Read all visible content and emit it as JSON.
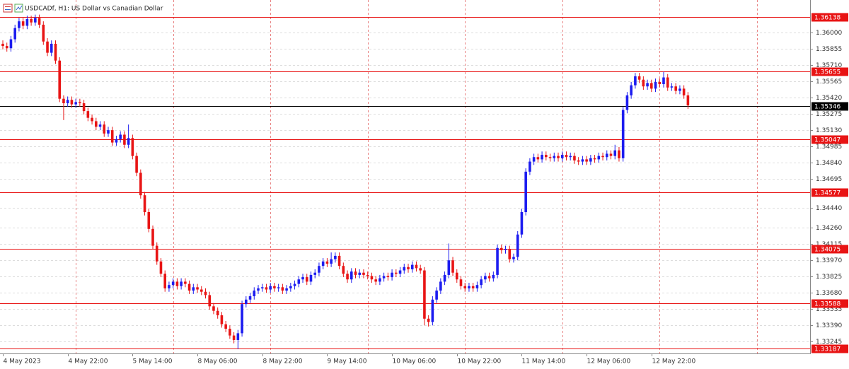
{
  "chart_data": {
    "type": "candlestick",
    "title": "USDCADf, H1:  US Dollar vs Canadian Dollar",
    "up_color": "#1c1cf0",
    "down_color": "#e81414",
    "level_color": "#e81414",
    "grid": true,
    "ylim": [
      1.3314,
      1.3629
    ],
    "yticks": [
      {
        "value": 1.36,
        "label": "1.36000"
      },
      1.35855,
      {
        "value": 1.3571,
        "label": "1.35710"
      },
      1.35565,
      {
        "value": 1.3542,
        "label": "1.35420"
      },
      1.35275,
      {
        "value": 1.3513,
        "label": "1.35130"
      },
      1.34985,
      {
        "value": 1.3484,
        "label": "1.34840"
      },
      1.34695,
      {
        "value": 1.3444,
        "label": "1.34440"
      },
      {
        "value": 1.3426,
        "label": "1.34260"
      },
      1.34115,
      {
        "value": 1.3397,
        "label": "1.33970"
      },
      1.33825,
      {
        "value": 1.3368,
        "label": "1.33680"
      },
      1.33535,
      {
        "value": 1.3339,
        "label": "1.33390"
      },
      1.33245
    ],
    "levels": [
      1.36138,
      1.35655,
      1.35047,
      1.34577,
      1.34075,
      1.33588,
      1.33187
    ],
    "current_price": 1.35346,
    "xticks": [
      {
        "value": 0,
        "label": "4 May 2023"
      },
      {
        "value": 16,
        "label": "4 May 22:00"
      },
      {
        "value": 32,
        "label": "5 May 14:00"
      },
      {
        "value": 48,
        "label": "8 May 06:00"
      },
      {
        "value": 64,
        "label": "8 May 22:00"
      },
      {
        "value": 80,
        "label": "9 May 14:00"
      },
      {
        "value": 96,
        "label": "10 May 06:00"
      },
      {
        "value": 112,
        "label": "10 May 22:00"
      },
      {
        "value": 128,
        "label": "11 May 14:00"
      },
      {
        "value": 144,
        "label": "12 May 06:00"
      },
      {
        "value": 160,
        "label": "12 May 22:00"
      }
    ],
    "open": [
      1.359,
      1.3588,
      1.3586,
      1.3594,
      1.3604,
      1.361,
      1.3606,
      1.3612,
      1.3609,
      1.3613,
      1.3607,
      1.3592,
      1.3582,
      1.359,
      1.3575,
      1.3541,
      1.3537,
      1.354,
      1.3536,
      1.3538,
      1.3537,
      1.353,
      1.3524,
      1.3521,
      1.3516,
      1.3518,
      1.351,
      1.3513,
      1.3502,
      1.3505,
      1.3509,
      1.35,
      1.3506,
      1.349,
      1.3475,
      1.3455,
      1.344,
      1.3425,
      1.341,
      1.3396,
      1.3385,
      1.3372,
      1.3375,
      1.3378,
      1.3374,
      1.3378,
      1.3376,
      1.337,
      1.3373,
      1.3371,
      1.3369,
      1.3366,
      1.3356,
      1.3352,
      1.3348,
      1.334,
      1.3336,
      1.333,
      1.3326,
      1.3332,
      1.3358,
      1.3362,
      1.3365,
      1.337,
      1.3372,
      1.3373,
      1.3371,
      1.3374,
      1.3372,
      1.3373,
      1.337,
      1.3372,
      1.3374,
      1.3376,
      1.338,
      1.3382,
      1.3378,
      1.3384,
      1.3386,
      1.3392,
      1.3396,
      1.3394,
      1.3398,
      1.3401,
      1.3392,
      1.3385,
      1.338,
      1.3387,
      1.3384,
      1.3386,
      1.3384,
      1.3383,
      1.338,
      1.3378,
      1.3381,
      1.3383,
      1.3382,
      1.3386,
      1.3385,
      1.3388,
      1.3391,
      1.3389,
      1.3393,
      1.339,
      1.3388,
      1.3345,
      1.3342,
      1.3362,
      1.337,
      1.3378,
      1.3384,
      1.3397,
      1.3386,
      1.338,
      1.3374,
      1.3372,
      1.3374,
      1.3372,
      1.3375,
      1.338,
      1.3383,
      1.3381,
      1.3384,
      1.3408,
      1.3406,
      1.3407,
      1.3398,
      1.34,
      1.342,
      1.344,
      1.3476,
      1.3485,
      1.3489,
      1.3487,
      1.3491,
      1.3489,
      1.3488,
      1.349,
      1.3488,
      1.3491,
      1.3489,
      1.349,
      1.3486,
      1.3485,
      1.3487,
      1.3485,
      1.3488,
      1.3487,
      1.349,
      1.3489,
      1.3492,
      1.349,
      1.3495,
      1.3488,
      1.3531,
      1.3544,
      1.3553,
      1.3561,
      1.3558,
      1.3552,
      1.3555,
      1.355,
      1.3556,
      1.3554,
      1.356,
      1.3551,
      1.3552,
      1.3548,
      1.355,
      1.3544
    ],
    "high": [
      1.3593,
      1.3591,
      1.3597,
      1.3607,
      1.3613,
      1.3613,
      1.3615,
      1.3615,
      1.3616,
      1.3616,
      1.361,
      1.3595,
      1.3593,
      1.3593,
      1.3578,
      1.3544,
      1.3543,
      1.3543,
      1.3541,
      1.3541,
      1.354,
      1.3533,
      1.3527,
      1.3524,
      1.3521,
      1.3521,
      1.3516,
      1.3516,
      1.3508,
      1.3512,
      1.3512,
      1.3518,
      1.3509,
      1.3493,
      1.3478,
      1.3458,
      1.3443,
      1.3428,
      1.3413,
      1.3399,
      1.3388,
      1.3378,
      1.3381,
      1.3381,
      1.3381,
      1.3381,
      1.3379,
      1.3376,
      1.3376,
      1.3374,
      1.3372,
      1.3369,
      1.3359,
      1.3355,
      1.3351,
      1.3343,
      1.3339,
      1.3333,
      1.3335,
      1.3361,
      1.3365,
      1.3368,
      1.3373,
      1.3375,
      1.3376,
      1.3376,
      1.3377,
      1.3377,
      1.3376,
      1.3376,
      1.3375,
      1.3377,
      1.3379,
      1.3383,
      1.3385,
      1.3385,
      1.3387,
      1.3389,
      1.3395,
      1.3399,
      1.3399,
      1.3404,
      1.3404,
      1.3404,
      1.3395,
      1.3388,
      1.339,
      1.339,
      1.3389,
      1.3389,
      1.3387,
      1.3386,
      1.3383,
      1.3384,
      1.3386,
      1.3386,
      1.3389,
      1.3389,
      1.3391,
      1.3394,
      1.3394,
      1.3396,
      1.3396,
      1.3393,
      1.3391,
      1.3348,
      1.3365,
      1.3373,
      1.3381,
      1.3387,
      1.3412,
      1.34,
      1.3389,
      1.3383,
      1.3377,
      1.3377,
      1.3377,
      1.3378,
      1.3383,
      1.3386,
      1.3386,
      1.3387,
      1.3411,
      1.3411,
      1.341,
      1.341,
      1.3403,
      1.3423,
      1.3443,
      1.3479,
      1.3488,
      1.3492,
      1.3492,
      1.3494,
      1.3494,
      1.3492,
      1.3493,
      1.3493,
      1.3494,
      1.3494,
      1.3493,
      1.3493,
      1.3489,
      1.349,
      1.349,
      1.3491,
      1.3491,
      1.3493,
      1.3493,
      1.3495,
      1.3495,
      1.35,
      1.3498,
      1.3534,
      1.3547,
      1.3556,
      1.3564,
      1.3564,
      1.3561,
      1.3558,
      1.3558,
      1.3559,
      1.3559,
      1.3565,
      1.3563,
      1.3555,
      1.3555,
      1.3553,
      1.3553,
      1.3547
    ],
    "low": [
      1.3585,
      1.3583,
      1.3583,
      1.3591,
      1.3601,
      1.3603,
      1.3603,
      1.3606,
      1.3606,
      1.3604,
      1.3589,
      1.3579,
      1.3579,
      1.3572,
      1.3538,
      1.3522,
      1.3534,
      1.3533,
      1.3533,
      1.3534,
      1.3527,
      1.3521,
      1.3518,
      1.3513,
      1.3513,
      1.3507,
      1.3507,
      1.3499,
      1.3499,
      1.3502,
      1.3497,
      1.3497,
      1.3487,
      1.3472,
      1.3452,
      1.3437,
      1.3422,
      1.3407,
      1.3393,
      1.3382,
      1.3369,
      1.3369,
      1.3372,
      1.3371,
      1.3371,
      1.3373,
      1.3367,
      1.3367,
      1.3368,
      1.3366,
      1.3363,
      1.3353,
      1.3349,
      1.3345,
      1.3337,
      1.3333,
      1.3327,
      1.3323,
      1.3318,
      1.3329,
      1.3355,
      1.3359,
      1.3362,
      1.3367,
      1.3369,
      1.3368,
      1.3368,
      1.3369,
      1.3369,
      1.3367,
      1.3367,
      1.3369,
      1.3371,
      1.3373,
      1.3377,
      1.3375,
      1.3375,
      1.3381,
      1.3383,
      1.3389,
      1.3391,
      1.3391,
      1.3395,
      1.3389,
      1.3382,
      1.3377,
      1.3377,
      1.3381,
      1.3381,
      1.3381,
      1.338,
      1.3377,
      1.3375,
      1.3375,
      1.3378,
      1.3379,
      1.3379,
      1.3382,
      1.3382,
      1.3385,
      1.3386,
      1.3386,
      1.3387,
      1.3385,
      1.3339,
      1.3338,
      1.3339,
      1.3359,
      1.3367,
      1.3375,
      1.3381,
      1.3383,
      1.3377,
      1.3371,
      1.3369,
      1.3369,
      1.3369,
      1.3369,
      1.3372,
      1.3377,
      1.3378,
      1.3378,
      1.3381,
      1.3403,
      1.3403,
      1.3395,
      1.3395,
      1.3397,
      1.3417,
      1.3437,
      1.3473,
      1.3482,
      1.3484,
      1.3484,
      1.3486,
      1.3485,
      1.3485,
      1.3485,
      1.3485,
      1.3486,
      1.3486,
      1.3483,
      1.3482,
      1.3482,
      1.3482,
      1.3482,
      1.3484,
      1.3484,
      1.3486,
      1.3486,
      1.3487,
      1.3487,
      1.3485,
      1.3485,
      1.3528,
      1.3541,
      1.355,
      1.3555,
      1.3549,
      1.3549,
      1.3547,
      1.3547,
      1.3551,
      1.3551,
      1.3548,
      1.3548,
      1.3545,
      1.3545,
      1.3541,
      1.3532
    ],
    "close": [
      1.3588,
      1.3586,
      1.3594,
      1.3604,
      1.361,
      1.3606,
      1.3612,
      1.3609,
      1.3613,
      1.3607,
      1.3592,
      1.3582,
      1.359,
      1.3575,
      1.3541,
      1.3537,
      1.354,
      1.3536,
      1.3538,
      1.3537,
      1.353,
      1.3524,
      1.3521,
      1.3516,
      1.3518,
      1.351,
      1.3513,
      1.3502,
      1.3505,
      1.3509,
      1.35,
      1.3506,
      1.349,
      1.3475,
      1.3455,
      1.344,
      1.3425,
      1.341,
      1.3396,
      1.3385,
      1.3372,
      1.3375,
      1.3378,
      1.3374,
      1.3378,
      1.3376,
      1.337,
      1.3373,
      1.3371,
      1.3369,
      1.3366,
      1.3356,
      1.3352,
      1.3348,
      1.334,
      1.3336,
      1.333,
      1.3326,
      1.3332,
      1.3358,
      1.3362,
      1.3365,
      1.337,
      1.3372,
      1.3373,
      1.3371,
      1.3374,
      1.3372,
      1.3373,
      1.337,
      1.3372,
      1.3374,
      1.3376,
      1.338,
      1.3382,
      1.3378,
      1.3384,
      1.3386,
      1.3392,
      1.3396,
      1.3394,
      1.3398,
      1.3401,
      1.3392,
      1.3385,
      1.338,
      1.3387,
      1.3384,
      1.3386,
      1.3384,
      1.3383,
      1.338,
      1.3378,
      1.3381,
      1.3383,
      1.3382,
      1.3386,
      1.3385,
      1.3388,
      1.3391,
      1.3389,
      1.3393,
      1.339,
      1.3388,
      1.3345,
      1.3342,
      1.3362,
      1.337,
      1.3378,
      1.3384,
      1.3397,
      1.3386,
      1.338,
      1.3374,
      1.3372,
      1.3374,
      1.3372,
      1.3375,
      1.338,
      1.3383,
      1.3381,
      1.3384,
      1.3408,
      1.3406,
      1.3407,
      1.3398,
      1.34,
      1.342,
      1.344,
      1.3476,
      1.3485,
      1.3489,
      1.3487,
      1.3491,
      1.3489,
      1.3488,
      1.349,
      1.3488,
      1.3491,
      1.3489,
      1.349,
      1.3486,
      1.3485,
      1.3487,
      1.3485,
      1.3488,
      1.3487,
      1.349,
      1.3489,
      1.3492,
      1.349,
      1.3495,
      1.3488,
      1.3531,
      1.3544,
      1.3553,
      1.3561,
      1.3558,
      1.3552,
      1.3555,
      1.355,
      1.3556,
      1.3554,
      1.356,
      1.3551,
      1.3552,
      1.3548,
      1.355,
      1.3544,
      1.3535
    ]
  }
}
